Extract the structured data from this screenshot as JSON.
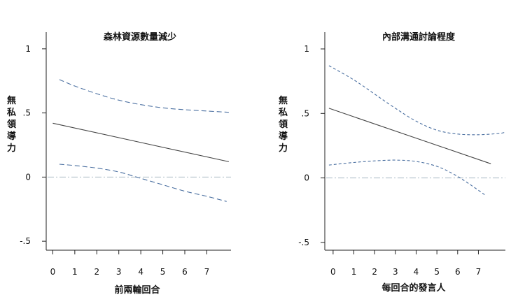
{
  "chart_data": [
    {
      "type": "line",
      "title": "森林資源數量減少",
      "xlabel": "前兩輪回合",
      "ylabel": "無私領導力",
      "xlim": [
        -0.3,
        8.1
      ],
      "ylim": [
        -0.57,
        1.13
      ],
      "x_ticks": [
        0,
        1,
        2,
        3,
        4,
        5,
        6,
        7
      ],
      "y_ticks": [
        {
          "value": 1,
          "label": "1"
        },
        {
          "value": 0.5,
          "label": ".5"
        },
        {
          "value": 0,
          "label": "0"
        },
        {
          "value": -0.5,
          "label": "-.5"
        }
      ],
      "grid": false,
      "reference_line": {
        "y": 0,
        "color": "#a9b9c4"
      },
      "series": [
        {
          "role": "estimate",
          "style": "solid",
          "color": "#444444",
          "x": [
            0,
            8
          ],
          "y": [
            0.42,
            0.12
          ]
        },
        {
          "role": "upper_ci",
          "style": "dashed",
          "color": "#4a6fa0",
          "x": [
            0.3,
            1,
            2,
            3,
            4,
            5,
            6,
            7,
            8
          ],
          "y": [
            0.76,
            0.71,
            0.65,
            0.6,
            0.565,
            0.54,
            0.525,
            0.515,
            0.505
          ]
        },
        {
          "role": "lower_ci",
          "style": "dashed",
          "color": "#4a6fa0",
          "x": [
            0.3,
            1,
            2,
            3,
            4,
            5,
            6,
            7,
            7.9
          ],
          "y": [
            0.1,
            0.09,
            0.07,
            0.04,
            -0.01,
            -0.06,
            -0.11,
            -0.15,
            -0.19
          ]
        }
      ]
    },
    {
      "type": "line",
      "title": "內部溝通討論程度",
      "xlabel": "每回合的發言人",
      "ylabel": "無私領導力",
      "xlim": [
        -0.4,
        8.3
      ],
      "ylim": [
        -0.56,
        1.13
      ],
      "x_ticks": [
        0,
        1,
        2,
        3,
        4,
        5,
        6,
        7
      ],
      "y_ticks": [
        {
          "value": 1,
          "label": "1"
        },
        {
          "value": 0.5,
          "label": ".5"
        },
        {
          "value": 0,
          "label": "0"
        },
        {
          "value": -0.5,
          "label": "-.5"
        }
      ],
      "grid": false,
      "reference_line": {
        "y": 0,
        "color": "#a9b9c4"
      },
      "series": [
        {
          "role": "estimate",
          "style": "solid",
          "color": "#444444",
          "x": [
            -0.2,
            7.6
          ],
          "y": [
            0.54,
            0.11
          ]
        },
        {
          "role": "upper_ci",
          "style": "dashed",
          "color": "#4a6fa0",
          "x": [
            -0.2,
            1,
            2,
            3,
            4,
            5,
            6,
            7,
            8,
            8.3
          ],
          "y": [
            0.87,
            0.76,
            0.65,
            0.54,
            0.44,
            0.37,
            0.34,
            0.335,
            0.345,
            0.355
          ]
        },
        {
          "role": "lower_ci",
          "style": "dashed",
          "color": "#4a6fa0",
          "x": [
            -0.2,
            1,
            2,
            3,
            4,
            5,
            5.8,
            6.5,
            7.3
          ],
          "y": [
            0.1,
            0.12,
            0.132,
            0.138,
            0.128,
            0.09,
            0.03,
            -0.04,
            -0.13
          ]
        }
      ]
    }
  ]
}
